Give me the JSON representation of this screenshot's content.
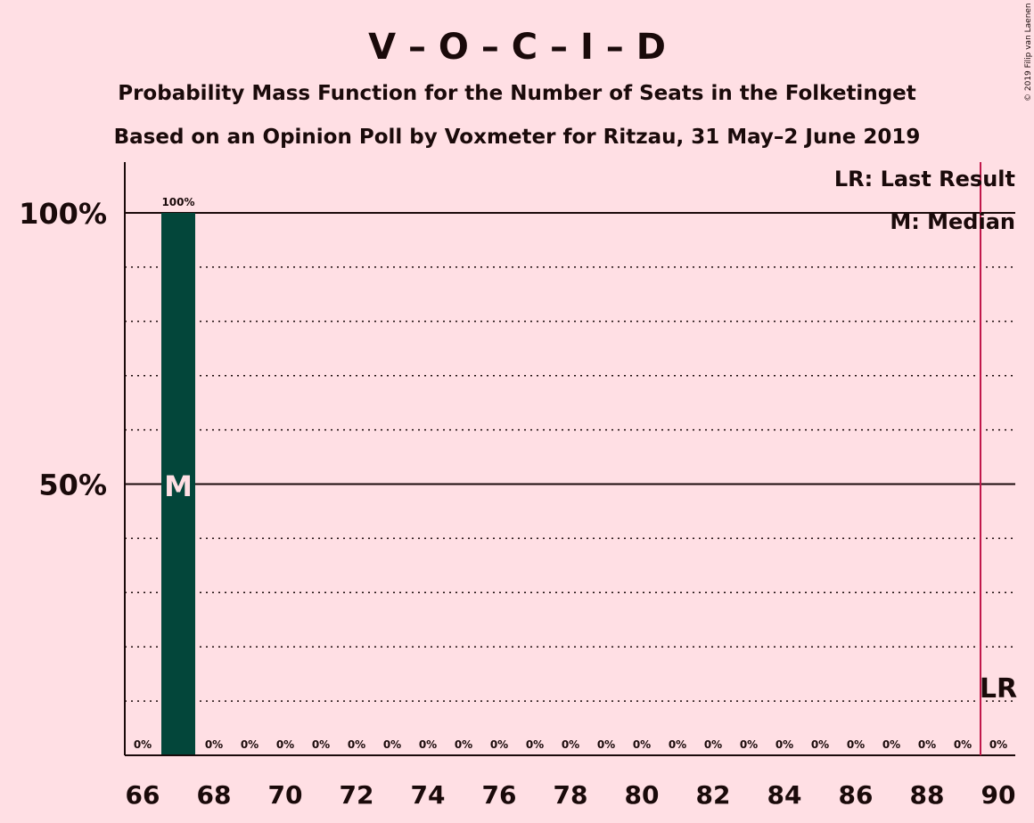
{
  "chart_data": {
    "type": "bar",
    "title": "V – O – C – I – D",
    "subtitle_1": "Probability Mass Function for the Number of Seats in the Folketinget",
    "subtitle_2": "Based on an Opinion Poll by Voxmeter for Ritzau, 31 May–2 June 2019",
    "copyright": "© 2019 Filip van Laenen",
    "x": [
      66,
      67,
      68,
      69,
      70,
      71,
      72,
      73,
      74,
      75,
      76,
      77,
      78,
      79,
      80,
      81,
      82,
      83,
      84,
      85,
      86,
      87,
      88,
      89,
      90
    ],
    "values": [
      0,
      100,
      0,
      0,
      0,
      0,
      0,
      0,
      0,
      0,
      0,
      0,
      0,
      0,
      0,
      0,
      0,
      0,
      0,
      0,
      0,
      0,
      0,
      0,
      0
    ],
    "value_labels": [
      "0%",
      "100%",
      "0%",
      "0%",
      "0%",
      "0%",
      "0%",
      "0%",
      "0%",
      "0%",
      "0%",
      "0%",
      "0%",
      "0%",
      "0%",
      "0%",
      "0%",
      "0%",
      "0%",
      "0%",
      "0%",
      "0%",
      "0%",
      "0%",
      "0%"
    ],
    "x_tick_labels": [
      "66",
      "68",
      "70",
      "72",
      "74",
      "76",
      "78",
      "80",
      "82",
      "84",
      "86",
      "88",
      "90"
    ],
    "x_tick_values": [
      66,
      68,
      70,
      72,
      74,
      76,
      78,
      80,
      82,
      84,
      86,
      88,
      90
    ],
    "y_tick_labels": [
      "50%",
      "100%"
    ],
    "y_tick_values": [
      50,
      100
    ],
    "xlim": [
      65.5,
      90.5
    ],
    "ylim": [
      0,
      110
    ],
    "median": 67,
    "median_label": "M",
    "last_result": 89.5,
    "last_result_label": "LR",
    "legend": {
      "lr": "LR: Last Result",
      "m": "M: Median"
    },
    "legend_position": "top-right",
    "grid": "dotted every 10%, solid at 50% and 100%",
    "colors": {
      "background": "#ffdfe4",
      "bar": "#03463a",
      "last_result_line": "#c0174a",
      "text": "#1a0a0a"
    }
  }
}
